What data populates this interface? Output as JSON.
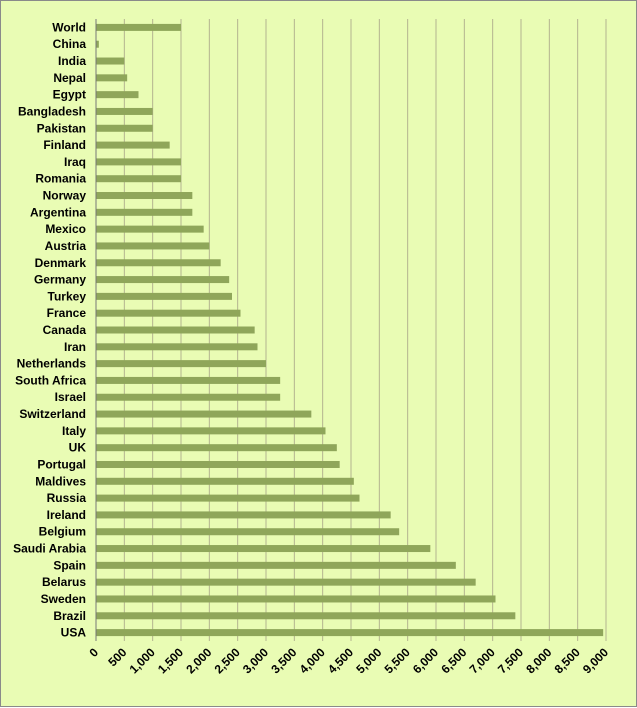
{
  "chart_data": {
    "type": "bar",
    "orientation": "horizontal",
    "categories": [
      "World",
      "China",
      "India",
      "Nepal",
      "Egypt",
      "Bangladesh",
      "Pakistan",
      "Finland",
      "Iraq",
      "Romania",
      "Norway",
      "Argentina",
      "Mexico",
      "Austria",
      "Denmark",
      "Germany",
      "Turkey",
      "France",
      "Canada",
      "Iran",
      "Netherlands",
      "South Africa",
      "Israel",
      "Switzerland",
      "Italy",
      "UK",
      "Portugal",
      "Maldives",
      "Russia",
      "Ireland",
      "Belgium",
      "Saudi Arabia",
      "Spain",
      "Belarus",
      "Sweden",
      "Brazil",
      "USA"
    ],
    "values": [
      1500,
      50,
      500,
      550,
      750,
      1000,
      1000,
      1300,
      1500,
      1500,
      1700,
      1700,
      1900,
      2000,
      2200,
      2350,
      2400,
      2550,
      2800,
      2850,
      3000,
      3250,
      3250,
      3800,
      4050,
      4250,
      4300,
      4550,
      4650,
      5200,
      5350,
      5900,
      6350,
      6700,
      7050,
      7400,
      8950
    ],
    "xticks": [
      "0",
      "500",
      "1,000",
      "1,500",
      "2,000",
      "2,500",
      "3,000",
      "3,500",
      "4,000",
      "4,500",
      "5,000",
      "5,500",
      "6,000",
      "6,500",
      "7,000",
      "7,500",
      "8,000",
      "8,500",
      "9,000"
    ],
    "xlim": [
      0,
      9000
    ],
    "grid": "vertical",
    "bar_color": "#8fa65a",
    "background_color": "#e9fcb4"
  }
}
